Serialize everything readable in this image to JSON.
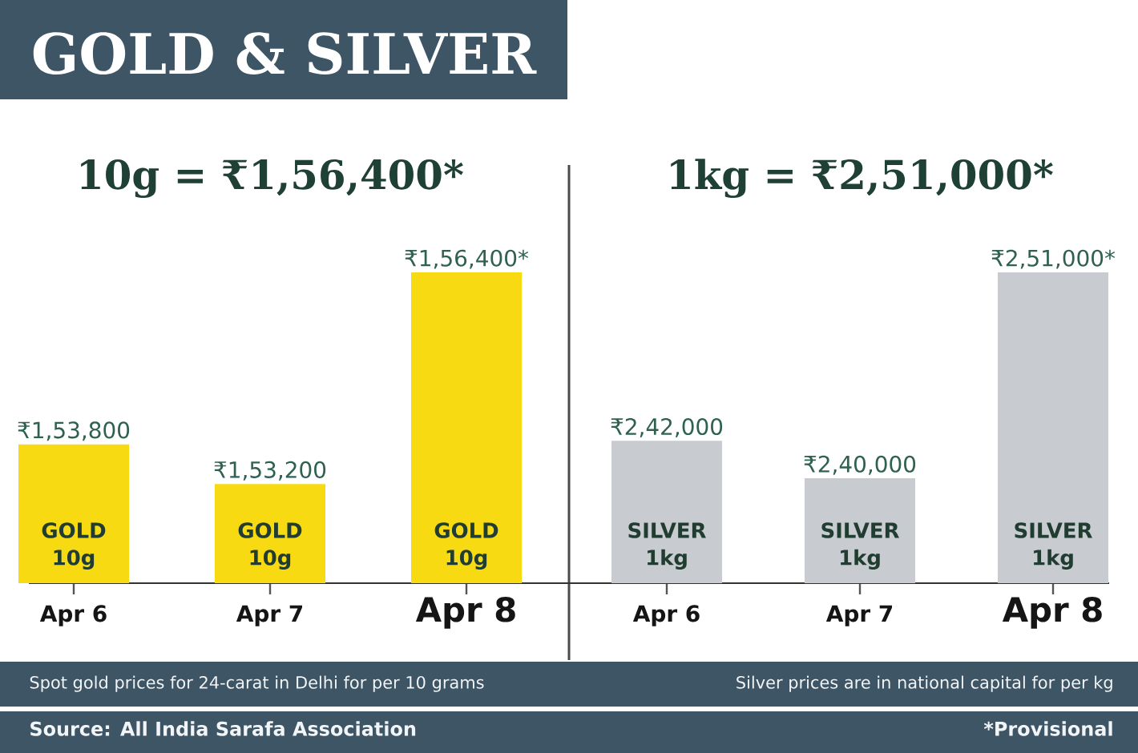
{
  "chart_data": [
    {
      "type": "bar",
      "title": "GOLD & SILVER",
      "subtitle": "10g = ₹1,56,400*",
      "categories": [
        "Apr 6",
        "Apr 7",
        "Apr 8"
      ],
      "values": [
        153800,
        153200,
        156400
      ],
      "value_labels": [
        "₹1,53,800",
        "₹1,53,200",
        "₹1,56,400*"
      ],
      "color": "#f8da12",
      "ylim": [
        151700,
        156400
      ],
      "tick_labels": "x",
      "annotations": [
        "GOLD 10g",
        "GOLD 10g",
        "GOLD 10g",
        "Spot gold prices for 24-carat in Delhi for per 10 grams",
        "Source: All India Sarafa Association"
      ]
    },
    {
      "type": "bar",
      "subtitle": "1kg = ₹2,51,000*",
      "categories": [
        "Apr 6",
        "Apr 7",
        "Apr 8"
      ],
      "values": [
        242000,
        240000,
        251000
      ],
      "value_labels": [
        "₹2,42,000",
        "₹2,40,000",
        "₹2,51,000*"
      ],
      "color": "#c8cbcf",
      "ylim": [
        234400,
        251000
      ],
      "tick_labels": "x",
      "annotations": [
        "SILVER 1kg",
        "SILVER 1kg",
        "SILVER 1kg",
        "Silver prices are in national capital for per kg",
        "*Provisional"
      ]
    }
  ]
}
